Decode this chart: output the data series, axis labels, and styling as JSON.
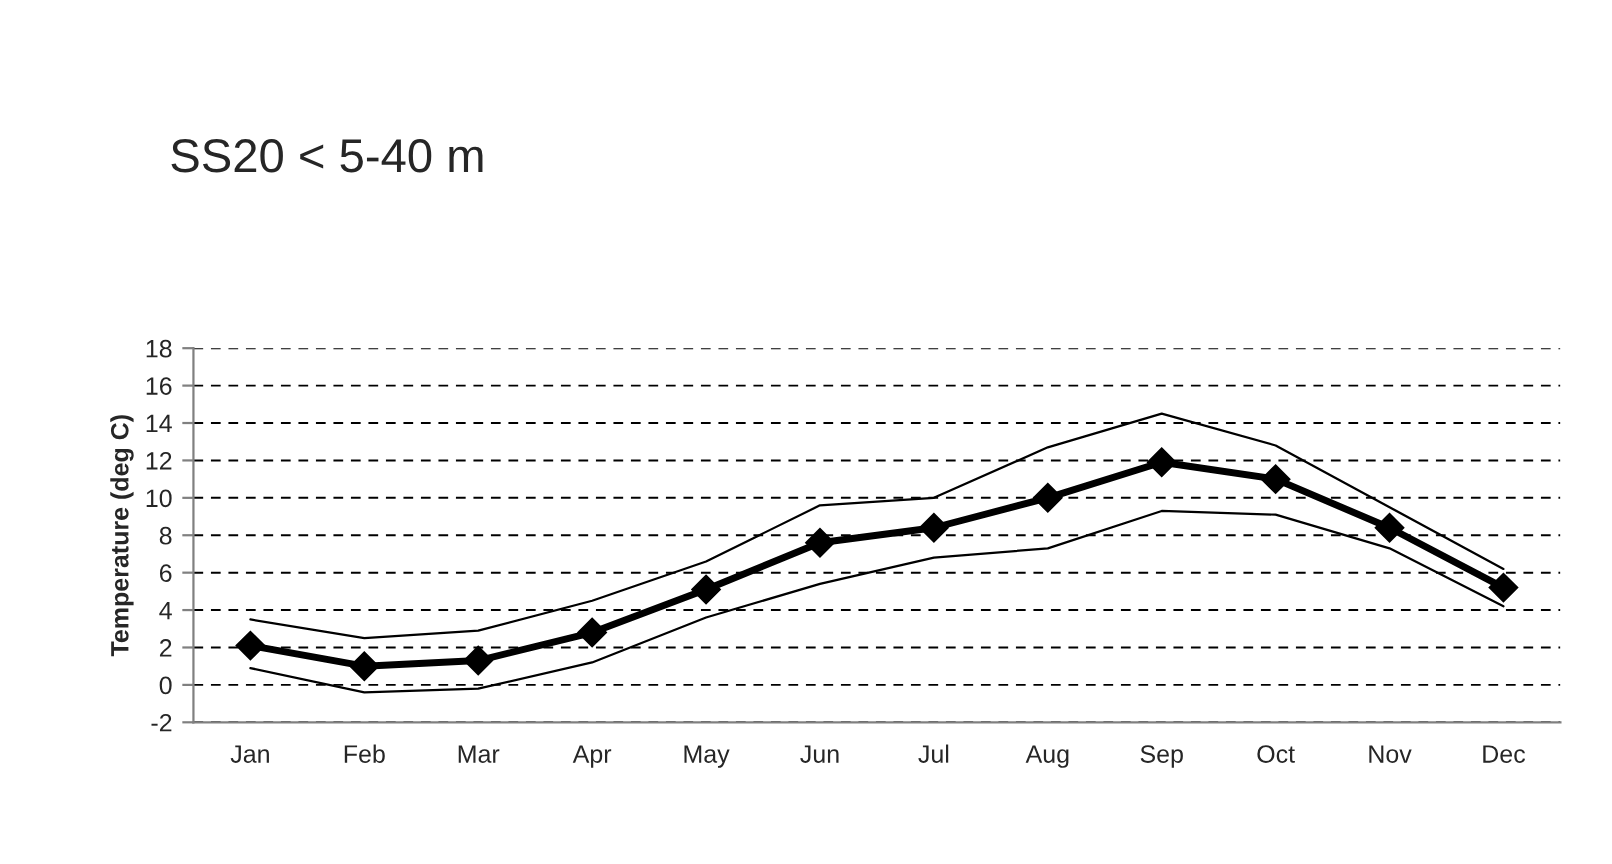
{
  "chart_data": {
    "type": "line",
    "title": "SS20 < 5-40 m",
    "ylabel": "Temperature (deg C)",
    "categories": [
      "Jan",
      "Feb",
      "Mar",
      "Apr",
      "May",
      "Jun",
      "Jul",
      "Aug",
      "Sep",
      "Oct",
      "Nov",
      "Dec"
    ],
    "series": [
      {
        "color": "#000000",
        "marker": "diamond",
        "values": [
          2.1,
          1.0,
          1.3,
          2.8,
          5.1,
          7.6,
          8.4,
          10.0,
          11.9,
          11.0,
          8.4,
          5.2
        ]
      },
      {
        "color": "#000000",
        "marker": "none",
        "values": [
          3.5,
          2.5,
          2.9,
          4.5,
          6.6,
          9.6,
          10.0,
          12.7,
          14.5,
          12.8,
          9.5,
          6.2
        ]
      },
      {
        "color": "#000000",
        "marker": "none",
        "values": [
          0.9,
          -0.4,
          -0.2,
          1.2,
          3.6,
          5.4,
          6.8,
          7.3,
          9.3,
          9.1,
          7.3,
          4.2
        ]
      }
    ],
    "ylim": [
      -2,
      18
    ],
    "yticks": [
      -2,
      0,
      2,
      4,
      6,
      8,
      10,
      12,
      14,
      16,
      18
    ],
    "grid": "y",
    "line_style": "solid"
  }
}
